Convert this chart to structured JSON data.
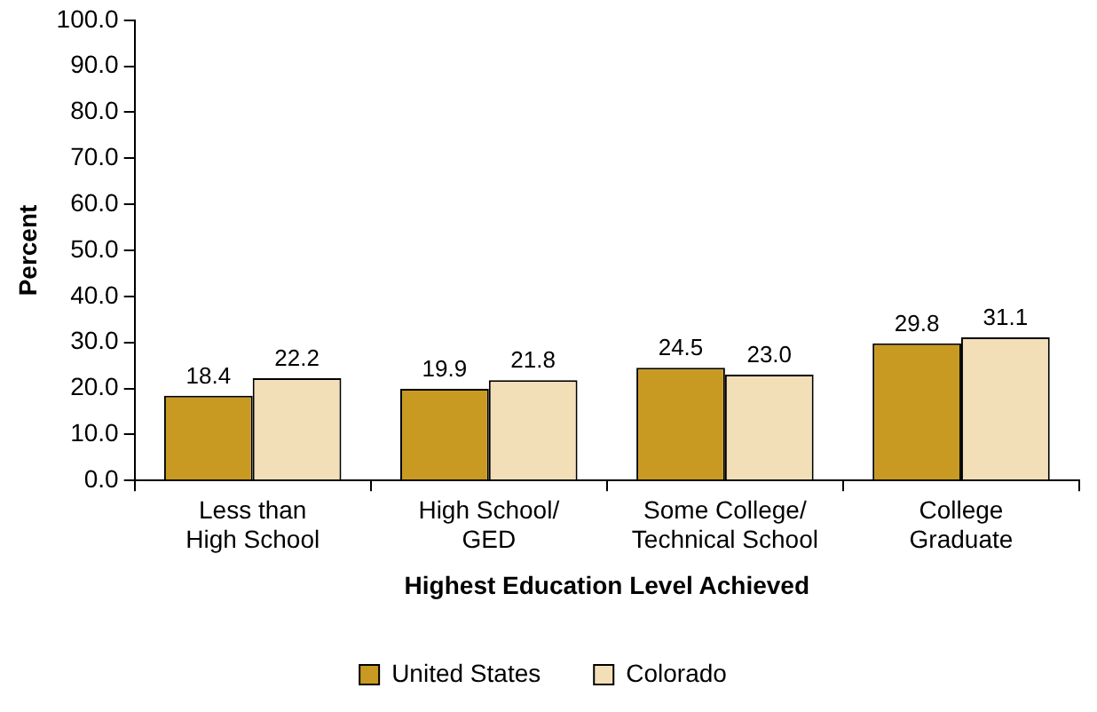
{
  "chart_data": {
    "type": "bar",
    "xlabel": "Highest Education Level Achieved",
    "ylabel": "Percent",
    "categories": [
      "Less than\nHigh School",
      "High School/\nGED",
      "Some College/\nTechnical School",
      "College\nGraduate"
    ],
    "series": [
      {
        "name": "United States",
        "color": "#c99a22",
        "values": [
          18.4,
          19.9,
          24.5,
          29.8
        ],
        "value_labels": [
          "18.4",
          "19.9",
          "24.5",
          "29.8"
        ]
      },
      {
        "name": "Colorado",
        "color": "#f2dfb8",
        "values": [
          22.2,
          21.8,
          23.0,
          31.1
        ],
        "value_labels": [
          "22.2",
          "21.8",
          "23.0",
          "31.1"
        ]
      }
    ],
    "ylim": [
      0,
      100
    ],
    "yticks": [
      {
        "value": 0,
        "label": "0.0"
      },
      {
        "value": 10,
        "label": "10.0"
      },
      {
        "value": 20,
        "label": "20.0"
      },
      {
        "value": 30,
        "label": "30.0"
      },
      {
        "value": 40,
        "label": "40.0"
      },
      {
        "value": 50,
        "label": "50.0"
      },
      {
        "value": 60,
        "label": "60.0"
      },
      {
        "value": 70,
        "label": "70.0"
      },
      {
        "value": 80,
        "label": "80.0"
      },
      {
        "value": 90,
        "label": "90.0"
      },
      {
        "value": 100,
        "label": "100.0"
      }
    ],
    "grid": false,
    "legend": "bottom"
  }
}
